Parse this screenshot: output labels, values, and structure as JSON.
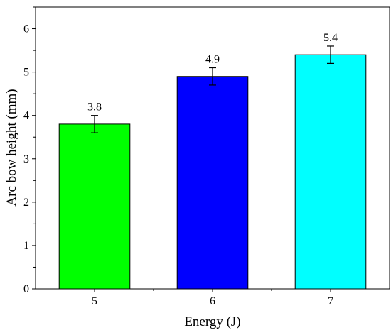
{
  "chart_data": {
    "type": "bar",
    "categories": [
      "5",
      "6",
      "7"
    ],
    "values": [
      3.8,
      4.9,
      5.4
    ],
    "errors": [
      0.2,
      0.2,
      0.2
    ],
    "data_labels": [
      "3.8",
      "4.9",
      "5.4"
    ],
    "colors": [
      "#00ff00",
      "#0000ff",
      "#00ffff"
    ],
    "title": "",
    "xlabel": "Energy (J)",
    "ylabel": "Arc bow height (mm)",
    "ylim": [
      0,
      6.5
    ],
    "yticks": [
      "0",
      "1",
      "2",
      "3",
      "4",
      "5",
      "6"
    ],
    "grid": false,
    "legend": "none"
  }
}
